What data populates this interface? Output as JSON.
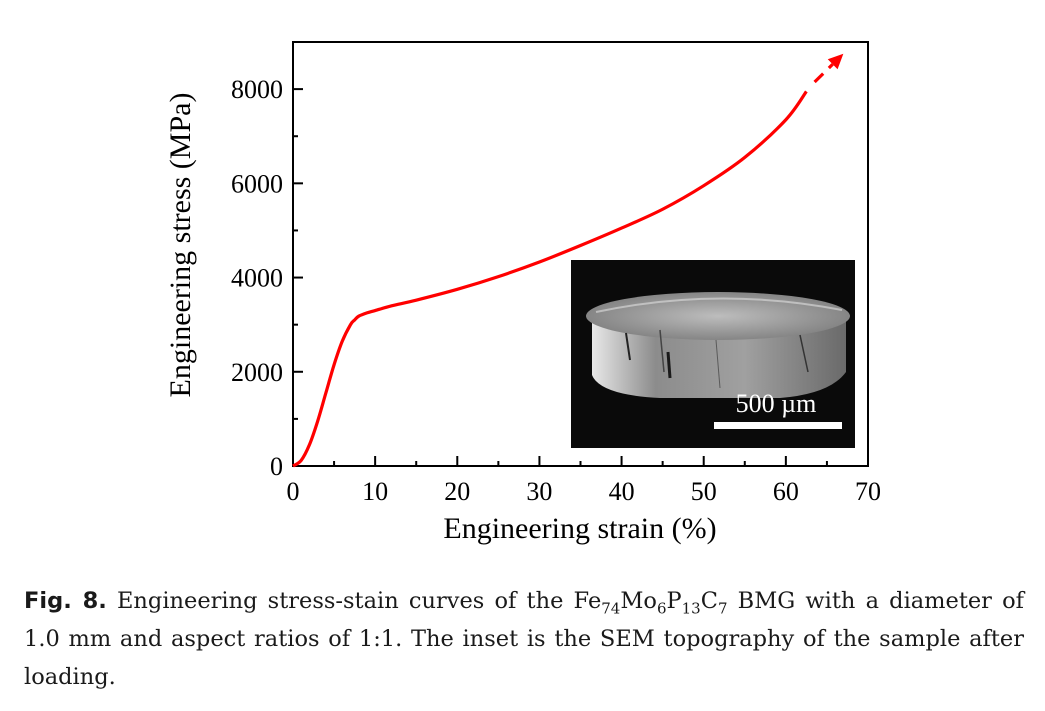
{
  "chart_data": {
    "type": "line",
    "xlabel": "Engineering strain (%)",
    "ylabel": "Engineering stress (MPa)",
    "xlim": [
      0,
      70
    ],
    "ylim": [
      0,
      9000
    ],
    "xticks": [
      0,
      10,
      20,
      30,
      40,
      50,
      60,
      70
    ],
    "yticks": [
      0,
      2000,
      4000,
      6000,
      8000
    ],
    "series_color": "#ff0000",
    "grid": false,
    "series": [
      {
        "x": [
          0,
          1,
          2,
          3,
          4,
          5,
          6,
          7,
          7.5,
          8,
          9,
          10,
          12,
          15,
          20,
          25,
          30,
          35,
          40,
          45,
          50,
          55,
          60,
          62.5
        ],
        "y": [
          0,
          120,
          450,
          950,
          1550,
          2150,
          2650,
          3000,
          3100,
          3180,
          3250,
          3300,
          3400,
          3520,
          3750,
          4020,
          4330,
          4680,
          5050,
          5450,
          5950,
          6550,
          7350,
          7950
        ]
      }
    ],
    "arrow": {
      "x": [
        63.5,
        67
      ],
      "y": [
        8150,
        8750
      ]
    }
  },
  "inset": {
    "scale_bar_label": "500 µm"
  },
  "caption": {
    "fig_label": "Fig. 8.",
    "text_before": "Engineering stress-stain curves of the Fe",
    "sub1": "74",
    "el2": "Mo",
    "sub2": "6",
    "el3": "P",
    "sub3": "13",
    "el4": "C",
    "sub4": "7",
    "text_after": " BMG with a diameter of 1.0 mm and aspect ratios of 1:1. The inset is the SEM topography of the sample after loading."
  }
}
